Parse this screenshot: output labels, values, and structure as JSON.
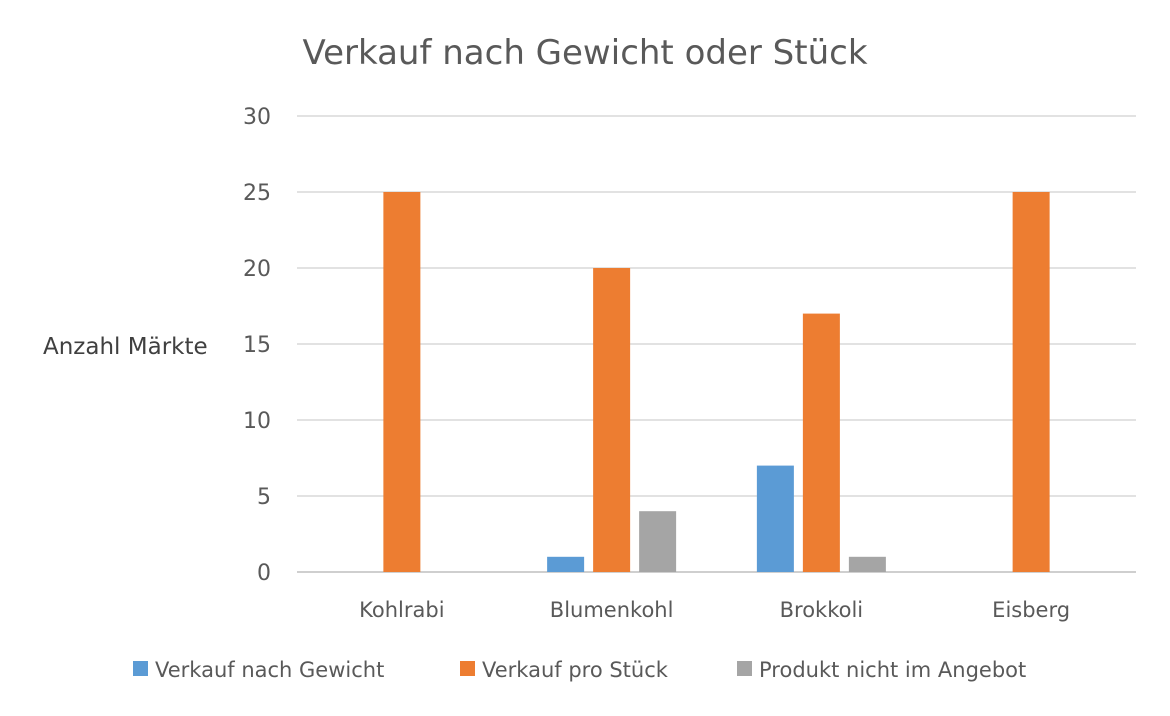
{
  "chart_data": {
    "type": "bar",
    "title": "Verkauf nach Gewicht oder Stück",
    "xlabel": "",
    "ylabel": "Anzahl Märkte",
    "ylim": [
      0,
      30
    ],
    "yticks": [
      0,
      5,
      10,
      15,
      20,
      25,
      30
    ],
    "grid": true,
    "legend_position": "bottom",
    "categories": [
      "Kohlrabi",
      "Blumenkohl",
      "Brokkoli",
      "Eisberg"
    ],
    "series": [
      {
        "name": "Verkauf nach Gewicht",
        "color": "#5b9bd5",
        "values": [
          0,
          1,
          7,
          0
        ]
      },
      {
        "name": "Verkauf pro Stück",
        "color": "#ed7d31",
        "values": [
          25,
          20,
          17,
          25
        ]
      },
      {
        "name": "Produkt nicht im Angebot",
        "color": "#a5a5a5",
        "values": [
          0,
          4,
          1,
          0
        ]
      }
    ]
  }
}
